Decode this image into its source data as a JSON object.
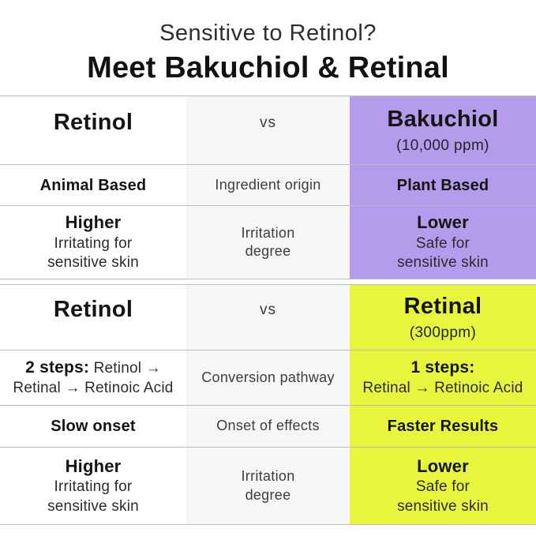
{
  "page": {
    "subtitle": "Sensitive to Retinol?",
    "title": "Meet Bakuchiol & Retinal"
  },
  "colors": {
    "bakuchiol_accent": "#b49cec",
    "retinal_accent": "#e7f53d",
    "criteria_bg": "#f6f6f6",
    "divider": "#bdbdbd"
  },
  "bakuchiol_table": {
    "header": {
      "left_product": "Retinol",
      "vs": "vs",
      "right_product": "Bakuchiol",
      "right_concentration": "(10,000 ppm)"
    },
    "origin_row": {
      "left": "Animal Based",
      "criterion": "Ingredient origin",
      "right": "Plant Based"
    },
    "irritation_row": {
      "left_term": "Higher",
      "left_desc_line1": "Irritating for",
      "left_desc_line2": "sensitive skin",
      "criterion_line1": "Irritation",
      "criterion_line2": "degree",
      "right_term": "Lower",
      "right_desc_line1": "Safe for",
      "right_desc_line2": "sensitive skin"
    }
  },
  "retinal_table": {
    "header": {
      "left_product": "Retinol",
      "vs": "vs",
      "right_product": "Retinal",
      "right_concentration": "(300ppm)"
    },
    "conversion_row": {
      "left_term": "2 steps:",
      "left_desc_line1": "Retinol →",
      "left_desc_line2": "Retinal → Retinoic Acid",
      "criterion": "Conversion pathway",
      "right_term": "1 steps:",
      "right_desc_line1": "Retinal → Retinoic Acid"
    },
    "onset_row": {
      "left": "Slow onset",
      "criterion": "Onset of effects",
      "right": "Faster Results"
    },
    "irritation_row": {
      "left_term": "Higher",
      "left_desc_line1": "Irritating for",
      "left_desc_line2": "sensitive skin",
      "criterion_line1": "Irritation",
      "criterion_line2": "degree",
      "right_term": "Lower",
      "right_desc_line1": "Safe for",
      "right_desc_line2": "sensitive skin"
    }
  }
}
